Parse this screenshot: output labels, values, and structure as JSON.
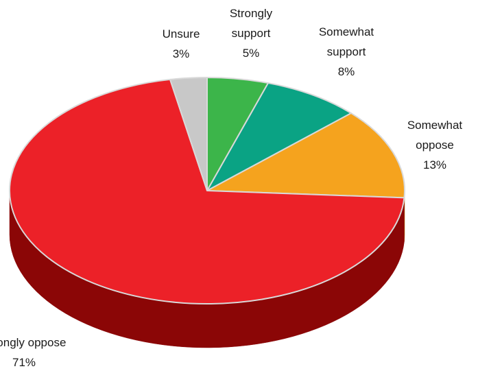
{
  "chart_data": {
    "type": "pie",
    "title": "",
    "categories": [
      "Strongly support",
      "Somewhat support",
      "Somewhat oppose",
      "Strongly oppose",
      "Unsure"
    ],
    "values": [
      5,
      8,
      13,
      71,
      3
    ],
    "value_labels": [
      "5%",
      "8%",
      "13%",
      "71%",
      "3%"
    ],
    "label_lines": [
      [
        "Strongly",
        "support"
      ],
      [
        "Somewhat",
        "support"
      ],
      [
        "Somewhat",
        "oppose"
      ],
      [
        "Strongly oppose"
      ],
      [
        "Unsure"
      ]
    ],
    "colors": [
      "#3cb54a",
      "#0aa384",
      "#f5a31e",
      "#ec2128",
      "#c8c8c8"
    ],
    "side_colors": [
      "#1f7a2a",
      "#066652",
      "#b8730c",
      "#8b0606",
      "#8c8c8c"
    ],
    "style": "3d-tilted",
    "legend": "none"
  }
}
